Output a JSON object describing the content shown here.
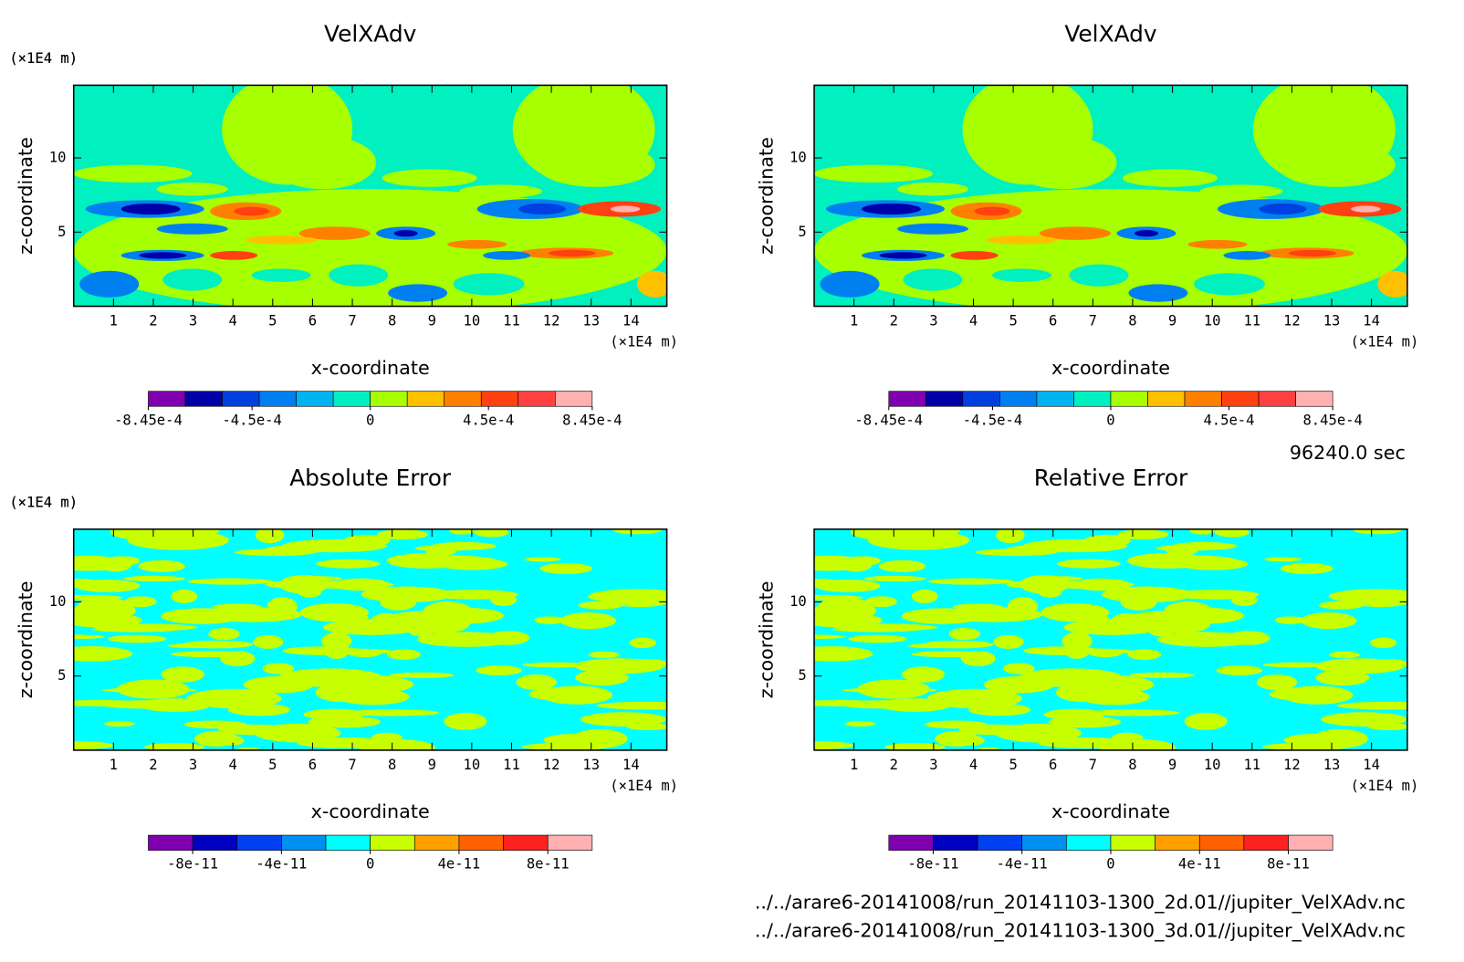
{
  "chart_data": [
    {
      "type": "contour",
      "field": "smooth",
      "title": "VelXAdv",
      "xlabel": "x-coordinate",
      "ylabel": "z-coordinate",
      "x_unit": "(×1E4 m)",
      "y_unit": "(×1E4 m)",
      "xlim": [
        0,
        14.9
      ],
      "ylim": [
        0,
        14.9
      ],
      "xticks": [
        1,
        2,
        3,
        4,
        5,
        6,
        7,
        8,
        9,
        10,
        11,
        12,
        13,
        14
      ],
      "yticks": [
        5,
        10
      ],
      "colorbar": {
        "lim": [
          -0.000845,
          0.000845
        ],
        "colors": [
          "#8000b0",
          "#0000a8",
          "#0040e0",
          "#0080f0",
          "#00b4f0",
          "#00f0c0",
          "#a8ff00",
          "#ffc000",
          "#ff8000",
          "#ff4010",
          "#ff4040",
          "#ffb0b0"
        ],
        "ticks": [
          {
            "value": -0.000845,
            "label": "-8.45e-4"
          },
          {
            "value": -0.00045,
            "label": "-4.5e-4"
          },
          0,
          {
            "value": 0.00045,
            "label": "4.5e-4"
          },
          {
            "value": 0.000845,
            "label": "8.45e-4"
          }
        ]
      }
    },
    {
      "type": "contour",
      "field": "smooth",
      "title": "VelXAdv",
      "xlabel": "x-coordinate",
      "ylabel": "z-coordinate",
      "x_unit": "(×1E4 m)",
      "y_unit": "(×1E4 m)",
      "xlim": [
        0,
        14.9
      ],
      "ylim": [
        0,
        14.9
      ],
      "xticks": [
        1,
        2,
        3,
        4,
        5,
        6,
        7,
        8,
        9,
        10,
        11,
        12,
        13,
        14
      ],
      "yticks": [
        5,
        10
      ],
      "colorbar": {
        "lim": [
          -0.000845,
          0.000845
        ],
        "colors": [
          "#8000b0",
          "#0000a8",
          "#0040e0",
          "#0080f0",
          "#00b4f0",
          "#00f0c0",
          "#a8ff00",
          "#ffc000",
          "#ff8000",
          "#ff4010",
          "#ff4040",
          "#ffb0b0"
        ],
        "ticks": [
          {
            "value": -0.000845,
            "label": "-8.45e-4"
          },
          {
            "value": -0.00045,
            "label": "-4.5e-4"
          },
          0,
          {
            "value": 0.00045,
            "label": "4.5e-4"
          },
          {
            "value": 0.000845,
            "label": "8.45e-4"
          }
        ]
      }
    },
    {
      "type": "contour",
      "field": "noise",
      "title": "Absolute Error",
      "xlabel": "x-coordinate",
      "ylabel": "z-coordinate",
      "x_unit": "(×1E4 m)",
      "y_unit": "(×1E4 m)",
      "xlim": [
        0,
        14.9
      ],
      "ylim": [
        0,
        14.9
      ],
      "xticks": [
        1,
        2,
        3,
        4,
        5,
        6,
        7,
        8,
        9,
        10,
        11,
        12,
        13,
        14
      ],
      "yticks": [
        5,
        10
      ],
      "colorbar": {
        "lim": [
          -1e-10,
          1e-10
        ],
        "colors": [
          "#8000b0",
          "#0000c0",
          "#0040f0",
          "#0090f0",
          "#00ffff",
          "#c8ff00",
          "#ffa000",
          "#ff6000",
          "#ff2020",
          "#ffb0b0"
        ],
        "ticks": [
          {
            "value": -8e-11,
            "label": "-8e-11"
          },
          {
            "value": -4e-11,
            "label": "-4e-11"
          },
          0,
          {
            "value": 4e-11,
            "label": "4e-11"
          },
          {
            "value": 8e-11,
            "label": "8e-11"
          }
        ]
      }
    },
    {
      "type": "contour",
      "field": "noise",
      "title": "Relative Error",
      "xlabel": "x-coordinate",
      "ylabel": "z-coordinate",
      "x_unit": "(×1E4 m)",
      "y_unit": "(×1E4 m)",
      "xlim": [
        0,
        14.9
      ],
      "ylim": [
        0,
        14.9
      ],
      "xticks": [
        1,
        2,
        3,
        4,
        5,
        6,
        7,
        8,
        9,
        10,
        11,
        12,
        13,
        14
      ],
      "yticks": [
        5,
        10
      ],
      "colorbar": {
        "lim": [
          -1e-10,
          1e-10
        ],
        "colors": [
          "#8000b0",
          "#0000c0",
          "#0040f0",
          "#0090f0",
          "#00ffff",
          "#c8ff00",
          "#ffa000",
          "#ff6000",
          "#ff2020",
          "#ffb0b0"
        ],
        "ticks": [
          {
            "value": -8e-11,
            "label": "-8e-11"
          },
          {
            "value": -4e-11,
            "label": "-4e-11"
          },
          0,
          {
            "value": 4e-11,
            "label": "4e-11"
          },
          {
            "value": 8e-11,
            "label": "8e-11"
          }
        ]
      }
    }
  ],
  "time_label": "96240.0 sec",
  "files": [
    "../../arare6-20141008/run_20141103-1300_2d.01//jupiter_VelXAdv.nc",
    "../../arare6-20141008/run_20141103-1300_3d.01//jupiter_VelXAdv.nc"
  ]
}
